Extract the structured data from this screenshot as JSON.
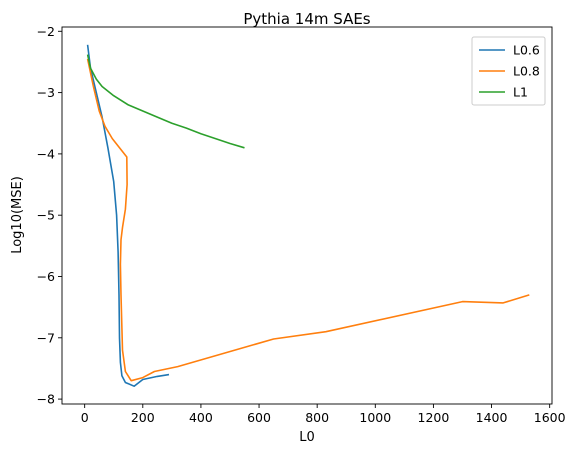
{
  "chart_data": {
    "type": "line",
    "title": "Pythia 14m SAEs",
    "xlabel": "L0",
    "ylabel": "Log10(MSE)",
    "xlim": [
      -78,
      1608
    ],
    "ylim": [
      -8.08,
      -1.93
    ],
    "xticks": [
      0,
      200,
      400,
      600,
      800,
      1000,
      1200,
      1400,
      1600
    ],
    "yticks": [
      -8,
      -7,
      -6,
      -5,
      -4,
      -3,
      -2
    ],
    "legend_position": "top-right",
    "series": [
      {
        "name": "L0.6",
        "color": "#1f77b4",
        "points": [
          [
            10,
            -2.22
          ],
          [
            20,
            -2.6
          ],
          [
            40,
            -3.0
          ],
          [
            60,
            -3.4
          ],
          [
            80,
            -3.9
          ],
          [
            100,
            -4.45
          ],
          [
            110,
            -5.0
          ],
          [
            115,
            -5.6
          ],
          [
            118,
            -6.3
          ],
          [
            120,
            -7.0
          ],
          [
            123,
            -7.4
          ],
          [
            128,
            -7.62
          ],
          [
            140,
            -7.73
          ],
          [
            170,
            -7.79
          ],
          [
            200,
            -7.68
          ],
          [
            250,
            -7.63
          ],
          [
            290,
            -7.6
          ]
        ]
      },
      {
        "name": "L0.8",
        "color": "#ff7f0e",
        "points": [
          [
            10,
            -2.45
          ],
          [
            30,
            -2.9
          ],
          [
            50,
            -3.3
          ],
          [
            70,
            -3.55
          ],
          [
            95,
            -3.75
          ],
          [
            120,
            -3.9
          ],
          [
            145,
            -4.05
          ],
          [
            146,
            -4.5
          ],
          [
            140,
            -4.9
          ],
          [
            130,
            -5.2
          ],
          [
            125,
            -5.4
          ],
          [
            123,
            -5.8
          ],
          [
            125,
            -6.3
          ],
          [
            130,
            -7.2
          ],
          [
            140,
            -7.55
          ],
          [
            160,
            -7.7
          ],
          [
            200,
            -7.65
          ],
          [
            240,
            -7.55
          ],
          [
            320,
            -7.47
          ],
          [
            650,
            -7.02
          ],
          [
            830,
            -6.9
          ],
          [
            1300,
            -6.41
          ],
          [
            1440,
            -6.43
          ],
          [
            1530,
            -6.3
          ]
        ]
      },
      {
        "name": "L1",
        "color": "#2ca02c",
        "points": [
          [
            10,
            -2.38
          ],
          [
            20,
            -2.6
          ],
          [
            40,
            -2.78
          ],
          [
            60,
            -2.9
          ],
          [
            100,
            -3.05
          ],
          [
            150,
            -3.2
          ],
          [
            200,
            -3.3
          ],
          [
            250,
            -3.4
          ],
          [
            300,
            -3.5
          ],
          [
            350,
            -3.58
          ],
          [
            400,
            -3.67
          ],
          [
            450,
            -3.75
          ],
          [
            500,
            -3.83
          ],
          [
            550,
            -3.9
          ]
        ]
      }
    ]
  }
}
